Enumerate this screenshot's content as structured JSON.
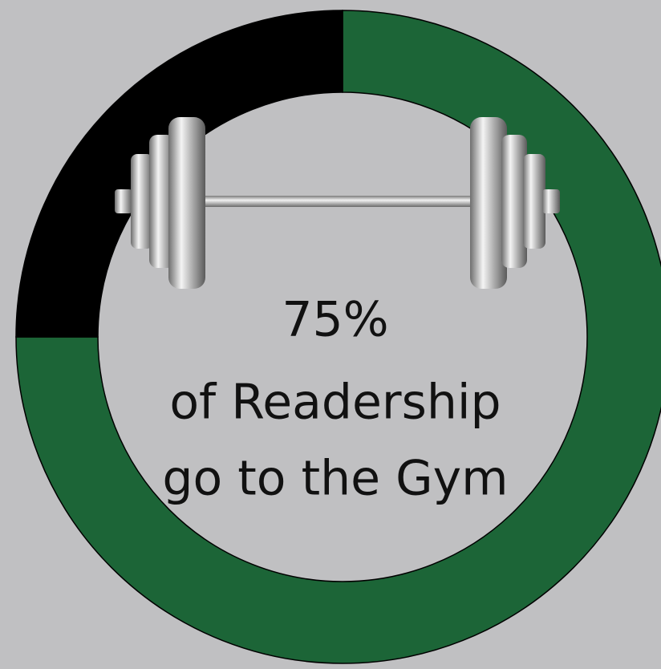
{
  "chart_data": {
    "type": "donut",
    "values": [
      75,
      25
    ],
    "value_labels": [
      "75%",
      null
    ],
    "colors": [
      "#1c6537",
      "#000000"
    ],
    "caption": [
      "of Readership",
      "go to the Gym"
    ]
  }
}
